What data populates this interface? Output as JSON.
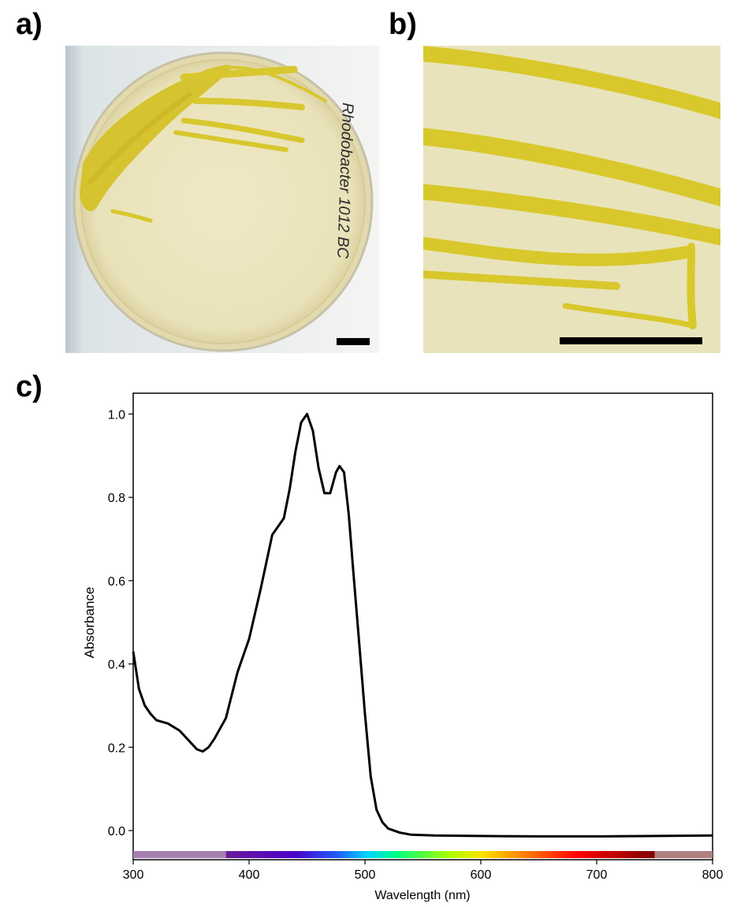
{
  "panels": {
    "a_label": "a)",
    "b_label": "b)",
    "c_label": "c)",
    "a_plate_writing": "Rhodobacter 1012 BC",
    "colors": {
      "agar": "#ebe5c0",
      "colony": "#d7c62a",
      "scale_bar": "#000000"
    }
  },
  "chart_data": {
    "type": "line",
    "xlabel": "Wavelength (nm)",
    "ylabel": "Absorbance",
    "xlim": [
      300,
      800
    ],
    "ylim": [
      -0.07,
      1.05
    ],
    "xticks": [
      300,
      400,
      500,
      600,
      700,
      800
    ],
    "xtick_labels": [
      "300",
      "400",
      "500",
      "600",
      "700",
      "800"
    ],
    "yticks": [
      0.0,
      0.2,
      0.4,
      0.6,
      0.8,
      1.0
    ],
    "ytick_labels": [
      "0.0",
      "0.2",
      "0.4",
      "0.6",
      "0.8",
      "1.0"
    ],
    "grid": false,
    "spectrum_bar": {
      "range": [
        300,
        800
      ],
      "uv_color": "#a57fb0",
      "ir_color": "#b07f80"
    },
    "series": [
      {
        "color": "#000000",
        "x": [
          300,
          305,
          310,
          315,
          320,
          330,
          340,
          350,
          355,
          360,
          365,
          370,
          380,
          390,
          400,
          410,
          420,
          425,
          430,
          435,
          440,
          445,
          450,
          455,
          460,
          465,
          470,
          475,
          478,
          482,
          486,
          490,
          495,
          500,
          505,
          510,
          515,
          520,
          530,
          540,
          560,
          600,
          650,
          700,
          750,
          800
        ],
        "y": [
          0.43,
          0.34,
          0.3,
          0.28,
          0.265,
          0.257,
          0.24,
          0.21,
          0.195,
          0.19,
          0.2,
          0.22,
          0.27,
          0.38,
          0.46,
          0.58,
          0.71,
          0.73,
          0.75,
          0.82,
          0.91,
          0.98,
          1.0,
          0.96,
          0.87,
          0.81,
          0.81,
          0.86,
          0.875,
          0.86,
          0.76,
          0.62,
          0.45,
          0.28,
          0.13,
          0.05,
          0.02,
          0.005,
          -0.005,
          -0.01,
          -0.012,
          -0.013,
          -0.014,
          -0.014,
          -0.013,
          -0.012
        ]
      }
    ]
  }
}
